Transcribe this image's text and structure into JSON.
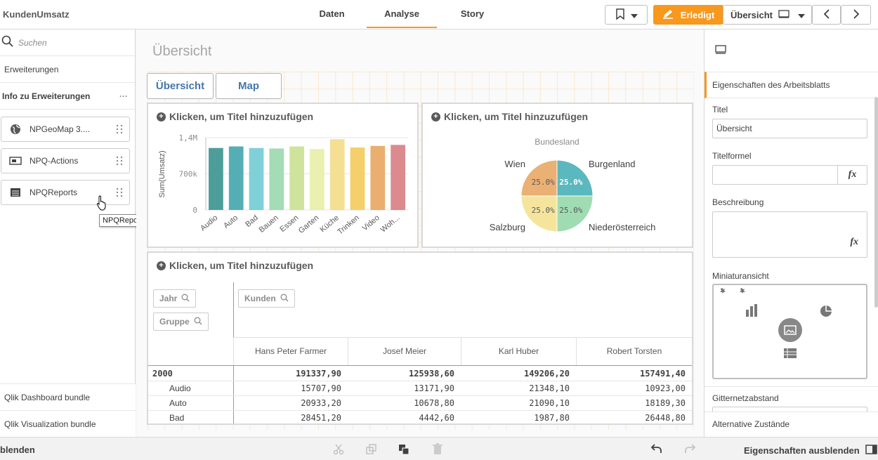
{
  "app": {
    "title": "KundenUmsatz"
  },
  "tabs": [
    {
      "label": "Daten"
    },
    {
      "label": "Analyse"
    },
    {
      "label": "Story"
    }
  ],
  "toolbar": {
    "done_label": "Erledigt",
    "sheet_label": "Übersicht"
  },
  "left": {
    "search_placeholder": "Suchen",
    "extensions_label": "Erweiterungen",
    "info_label": "Info zu Erweiterungen",
    "items": [
      {
        "label": "NPGeoMap 3...."
      },
      {
        "label": "NPQ-Actions"
      },
      {
        "label": "NPQReports"
      }
    ],
    "tooltip": "NPQReports",
    "bundles": [
      {
        "label": "Qlik Dashboard bundle"
      },
      {
        "label": "Qlik Visualization bundle"
      }
    ]
  },
  "sheet": {
    "title": "Übersicht",
    "buttons": [
      {
        "label": "Übersicht"
      },
      {
        "label": "Map"
      }
    ],
    "panel_title": "Klicken, um Titel hinzuzufügen"
  },
  "chart_data": [
    {
      "type": "bar",
      "ylabel": "Sum(Umsatz)",
      "ylim": [
        0,
        1400000
      ],
      "yticks": [
        "1,4M",
        "700k",
        "0"
      ],
      "categories": [
        "Audio",
        "Auto",
        "Bad",
        "Bauen",
        "Essen",
        "Garten",
        "Küche",
        "Trinken",
        "Video",
        "Woh..."
      ],
      "values": [
        1200000,
        1230000,
        1200000,
        1190000,
        1230000,
        1180000,
        1370000,
        1210000,
        1240000,
        1260000
      ],
      "colors": [
        "#4d9e9a",
        "#56aeb5",
        "#7fd0d8",
        "#a3dcb5",
        "#cfe39c",
        "#e9f0b0",
        "#f4df93",
        "#f5cf6a",
        "#eaae6e",
        "#db8a8e"
      ]
    },
    {
      "type": "pie",
      "title": "Bundesland",
      "slices": [
        {
          "name": "Burgenland",
          "value": 25.0,
          "label": "25.0%",
          "color": "#5bb8be"
        },
        {
          "name": "Niederösterreich",
          "value": 25.0,
          "label": "25.0%",
          "color": "#9fdcb2"
        },
        {
          "name": "Salzburg",
          "value": 25.0,
          "label": "25.0%",
          "color": "#f5e59c"
        },
        {
          "name": "Wien",
          "value": 25.0,
          "label": "25.0%",
          "color": "#eab074"
        }
      ]
    },
    {
      "type": "table",
      "filters": {
        "row1": "Jahr",
        "row2": "Gruppe",
        "col": "Kunden"
      },
      "columns": [
        "Hans Peter Farmer",
        "Josef Meier",
        "Karl Huber",
        "Robert Torsten"
      ],
      "rows": [
        {
          "label": "2000",
          "values": [
            "191337,90",
            "125938,60",
            "149206,20",
            "157491,40"
          ]
        },
        {
          "label": "Audio",
          "values": [
            "15707,90",
            "13171,90",
            "21348,10",
            "10923,00"
          ]
        },
        {
          "label": "Auto",
          "values": [
            "20933,20",
            "10678,80",
            "21090,10",
            "18189,30"
          ]
        },
        {
          "label": "Bad",
          "values": [
            "28451,20",
            "4442,60",
            "1987,80",
            "26448,80"
          ]
        }
      ]
    }
  ],
  "right": {
    "section_title": "Eigenschaften des Arbeitsblatts",
    "title_label": "Titel",
    "title_value": "Übersicht",
    "formula_label": "Titelformel",
    "description_label": "Beschreibung",
    "thumbnail_label": "Miniaturansicht",
    "grid_label": "Gitternetzabstand",
    "alt_states_label": "Alternative Zustände",
    "fx": "fx"
  },
  "bottom": {
    "left_label": "blenden",
    "right_label": "Eigenschaften ausblenden"
  }
}
